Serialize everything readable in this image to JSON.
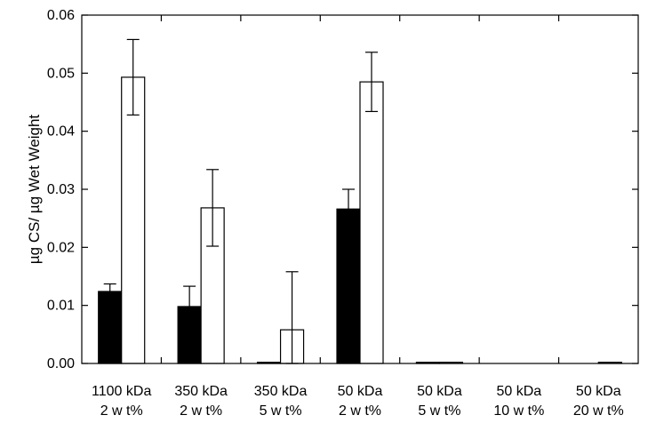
{
  "chart_data": {
    "type": "bar",
    "title": "",
    "xlabel": "",
    "ylabel": "µg CS/ µg Wet Weight",
    "ylim": [
      0,
      0.06
    ],
    "yticks": [
      "0.00",
      "0.01",
      "0.02",
      "0.03",
      "0.04",
      "0.05",
      "0.06"
    ],
    "grid": false,
    "legend": "none",
    "categories": [
      [
        "1100 kDa",
        "2 w t%"
      ],
      [
        "350 kDa",
        "2 w t%"
      ],
      [
        "350 kDa",
        "5 w t%"
      ],
      [
        "50 kDa",
        "2 w t%"
      ],
      [
        "50 kDa",
        "5 w t%"
      ],
      [
        "50 kDa",
        "10 w t%"
      ],
      [
        "50 kDa",
        "20 w t%"
      ]
    ],
    "series": [
      {
        "fill": "#000000",
        "values": [
          0.0124,
          0.0098,
          0.0002,
          0.0266,
          0.0002,
          0.0,
          0.0
        ],
        "errors": [
          0.0013,
          0.0035,
          0.0,
          0.0034,
          0.0,
          0.0,
          0.0
        ]
      },
      {
        "fill": "#ffffff",
        "values": [
          0.0493,
          0.0268,
          0.0058,
          0.0485,
          0.0002,
          0.0,
          0.0002
        ],
        "errors": [
          0.0065,
          0.0066,
          0.01,
          0.0051,
          0.0,
          0.0,
          0.0
        ]
      }
    ]
  }
}
